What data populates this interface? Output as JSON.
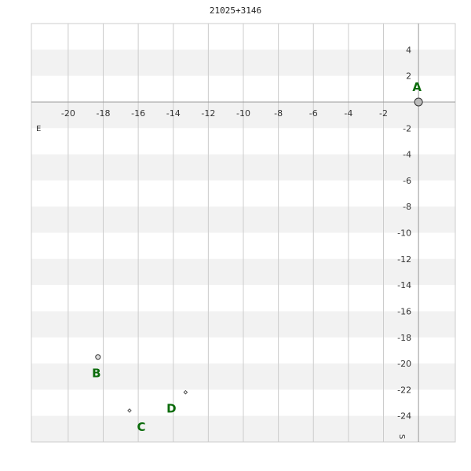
{
  "chart_data": {
    "type": "scatter",
    "title": "21025+3146",
    "xlabel": "E",
    "ylabel": "S",
    "xlim": [
      -22.1,
      2.1
    ],
    "ylim": [
      -26,
      6
    ],
    "grid": true,
    "x_ticks": [
      -20,
      -18,
      -16,
      -14,
      -12,
      -10,
      -8,
      -6,
      -4,
      -2
    ],
    "y_ticks": [
      4,
      2,
      -2,
      -4,
      -6,
      -8,
      -10,
      -12,
      -14,
      -16,
      -18,
      -20,
      -22,
      -24
    ],
    "points": [
      {
        "label": "A",
        "x": 0,
        "y": 0,
        "marker": "large-circle"
      },
      {
        "label": "B",
        "x": -18.3,
        "y": -19.5,
        "marker": "circle"
      },
      {
        "label": "C",
        "x": -16.5,
        "y": -23.6,
        "marker": "diamond"
      },
      {
        "label": "D",
        "x": -13.3,
        "y": -22.2,
        "marker": "diamond"
      }
    ],
    "colors": {
      "band": "#f2f2f2",
      "grid": "#cccccc",
      "axis": "#999999",
      "label": "#0b6b0b"
    }
  }
}
